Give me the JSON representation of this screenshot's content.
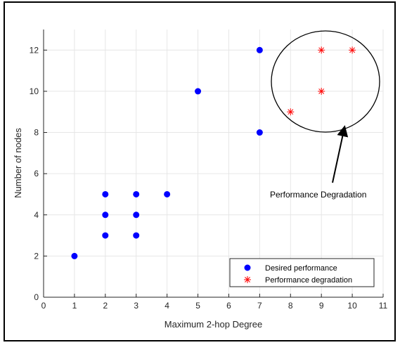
{
  "chart_data": {
    "type": "scatter",
    "xlabel": "Maximum 2-hop Degree",
    "ylabel": "Number of nodes",
    "xlim": [
      0,
      11
    ],
    "ylim": [
      0,
      13
    ],
    "xticks": [
      0,
      1,
      2,
      3,
      4,
      5,
      6,
      7,
      8,
      9,
      10,
      11
    ],
    "yticks": [
      0,
      2,
      4,
      6,
      8,
      10,
      12
    ],
    "grid": true,
    "legend_position": "bottom-right",
    "series": [
      {
        "name": "Desired performance",
        "marker": "filled-circle",
        "color": "#0000ff",
        "points": [
          {
            "x": 1,
            "y": 2
          },
          {
            "x": 2,
            "y": 3
          },
          {
            "x": 2,
            "y": 4
          },
          {
            "x": 2,
            "y": 5
          },
          {
            "x": 3,
            "y": 3
          },
          {
            "x": 3,
            "y": 4
          },
          {
            "x": 3,
            "y": 5
          },
          {
            "x": 4,
            "y": 5
          },
          {
            "x": 5,
            "y": 10
          },
          {
            "x": 7,
            "y": 8
          },
          {
            "x": 7,
            "y": 12
          }
        ]
      },
      {
        "name": "Performance degradation",
        "marker": "asterisk",
        "color": "#ff0000",
        "points": [
          {
            "x": 8,
            "y": 9
          },
          {
            "x": 9,
            "y": 10
          },
          {
            "x": 9,
            "y": 12
          },
          {
            "x": 10,
            "y": 12
          }
        ]
      }
    ],
    "annotation": {
      "text": "Performance Degradation",
      "shape": "ellipse",
      "arrow": true
    }
  }
}
